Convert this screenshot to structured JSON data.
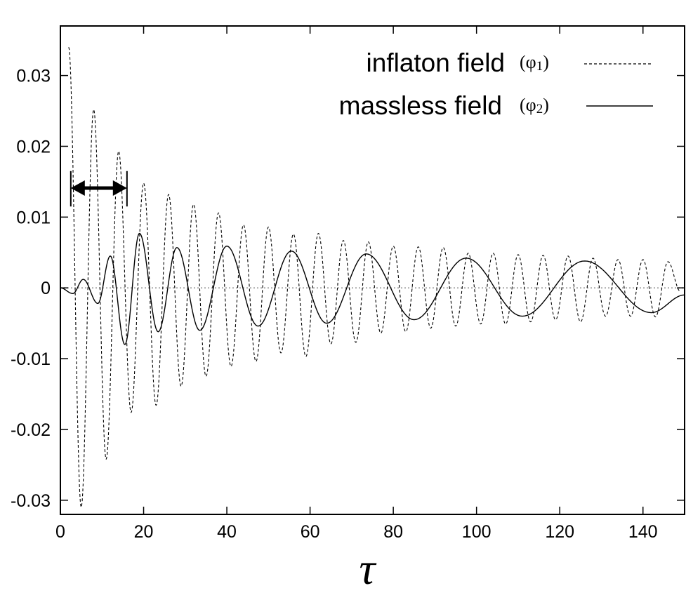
{
  "chart_data": {
    "type": "line",
    "title": "",
    "xlabel": "τ",
    "ylabel": "",
    "xlim": [
      0,
      150
    ],
    "ylim": [
      -0.032,
      0.037
    ],
    "grid": false,
    "legend_position": "top-right",
    "x_ticks": [
      0,
      20,
      40,
      60,
      80,
      100,
      120,
      140
    ],
    "x_tick_labels": [
      "0",
      "20",
      "40",
      "60",
      "80",
      "100",
      "120",
      "140"
    ],
    "y_ticks": [
      -0.03,
      -0.02,
      -0.01,
      0,
      0.01,
      0.02,
      0.03
    ],
    "y_tick_labels": [
      "-0.03",
      "-0.02",
      "-0.01",
      "0",
      "0.01",
      "0.02",
      "0.03"
    ],
    "zero_line": true,
    "series": [
      {
        "name": "inflaton field",
        "symbol": "φ",
        "subscript": "1",
        "style": "dashed",
        "x": [
          2.0,
          5.0,
          8.0,
          11.0,
          14.0,
          17.0,
          20.0,
          23.0,
          26.0,
          29.0,
          32.0,
          35.0,
          38.0,
          41.0,
          44.0,
          47.0,
          50.0,
          53.0,
          56.0,
          59.0,
          62.0,
          65.0,
          68.0,
          71.0,
          74.0,
          77.0,
          80.0,
          83.0,
          86.0,
          89.0,
          92.0,
          95.0,
          98.0,
          101.0,
          104.0,
          107.0,
          110.0,
          113.0,
          116.0,
          119.0,
          122.0,
          125.0,
          128.0,
          131.0,
          134.0,
          137.0,
          140.0,
          143.0,
          146.0,
          149.0
        ],
        "y": [
          0.034,
          -0.031,
          0.0252,
          -0.0242,
          0.0193,
          -0.0176,
          0.0148,
          -0.0166,
          0.0132,
          -0.0139,
          0.0118,
          -0.0125,
          0.0106,
          -0.0111,
          0.0089,
          -0.0104,
          0.0086,
          -0.0092,
          0.0076,
          -0.0097,
          0.0077,
          -0.0079,
          0.0067,
          -0.0077,
          0.0065,
          -0.0064,
          0.0059,
          -0.0062,
          0.0058,
          -0.0057,
          0.0057,
          -0.0054,
          0.0049,
          -0.0051,
          0.0049,
          -0.0051,
          0.0047,
          -0.0048,
          0.0046,
          -0.0045,
          0.0045,
          -0.0048,
          0.0042,
          -0.004,
          0.004,
          -0.004,
          0.004,
          -0.0041,
          0.0037,
          -0.0005
        ]
      },
      {
        "name": "massless field",
        "symbol": "φ",
        "subscript": "2",
        "style": "solid",
        "x": [
          0,
          3.0,
          5.5,
          9.0,
          12.0,
          15.5,
          19.0,
          23.5,
          28.0,
          33.5,
          40.0,
          47.5,
          55.5,
          64.0,
          73.5,
          85.0,
          97.5,
          111.0,
          126.0,
          142.0,
          150.0
        ],
        "y": [
          0.0,
          -0.0008,
          0.0012,
          -0.0022,
          0.0045,
          -0.008,
          0.0077,
          -0.0062,
          0.0057,
          -0.006,
          0.0059,
          -0.0054,
          0.0052,
          -0.005,
          0.0048,
          -0.0045,
          0.0042,
          -0.004,
          0.0038,
          -0.0035,
          -0.001
        ]
      }
    ],
    "annotation": {
      "type": "double-arrow",
      "x_start": 2.5,
      "x_end": 16.0,
      "y": 0.0141,
      "bar_y_range": [
        0.0115,
        0.0165
      ]
    }
  }
}
